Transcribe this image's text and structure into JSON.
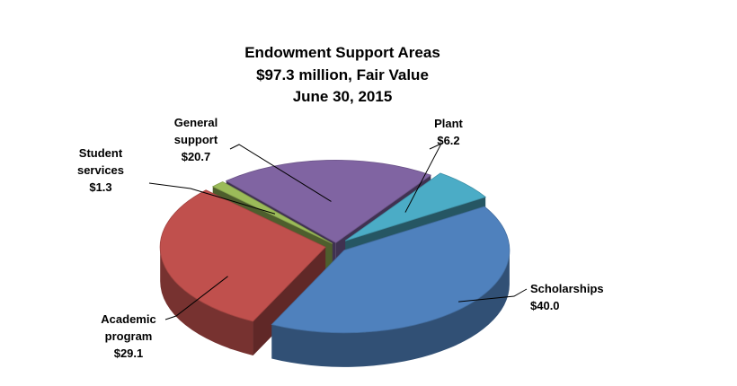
{
  "chart_data": {
    "type": "pie",
    "title_lines": [
      "Endowment Support Areas",
      "$97.3 million, Fair Value",
      "June 30, 2015"
    ],
    "total": 97.3,
    "unit": "$ million",
    "slices": [
      {
        "name": "Scholarships",
        "label_lines": [
          "Scholarships"
        ],
        "value_text": "$40.0",
        "value": 40.0,
        "color": "#4f81bd"
      },
      {
        "name": "Academic program",
        "label_lines": [
          "Academic",
          "program"
        ],
        "value_text": "$29.1",
        "value": 29.1,
        "color": "#c0504d"
      },
      {
        "name": "Student services",
        "label_lines": [
          "Student",
          "services"
        ],
        "value_text": "$1.3",
        "value": 1.3,
        "color": "#9bbb59"
      },
      {
        "name": "General support",
        "label_lines": [
          "General",
          "support"
        ],
        "value_text": "$20.7",
        "value": 20.7,
        "color": "#8064a2"
      },
      {
        "name": "Plant",
        "label_lines": [
          "Plant"
        ],
        "value_text": "$6.2",
        "value": 6.2,
        "color": "#4bacc6"
      }
    ],
    "style": "3d-exploded",
    "legend": "none"
  }
}
